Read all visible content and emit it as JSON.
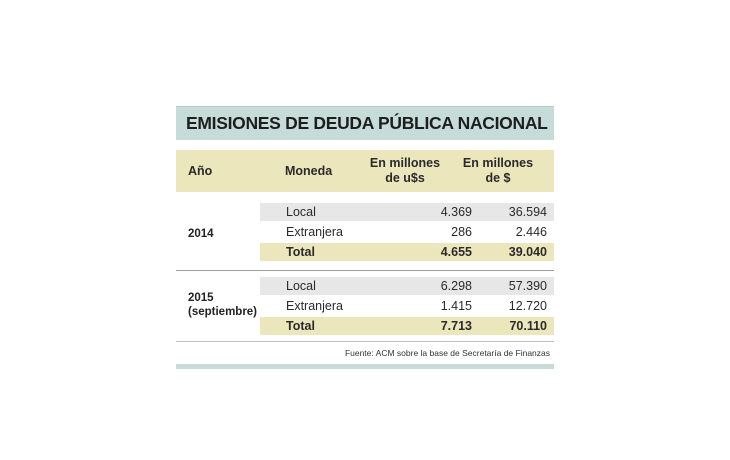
{
  "title": "EMISIONES DE DEUDA PÚBLICA NACIONAL",
  "headers": {
    "year": "Año",
    "currency": "Moneda",
    "usd_line1": "En millones",
    "usd_line2": "de u$s",
    "ars_line1": "En millones",
    "ars_line2": "de $"
  },
  "groups": [
    {
      "year_line1": "2014",
      "year_line2": "",
      "rows": [
        {
          "currency": "Local",
          "usd": "4.369",
          "ars": "36.594"
        },
        {
          "currency": "Extranjera",
          "usd": "286",
          "ars": "2.446"
        },
        {
          "currency": "Total",
          "usd": "4.655",
          "ars": "39.040"
        }
      ]
    },
    {
      "year_line1": "2015",
      "year_line2": "(septiembre)",
      "rows": [
        {
          "currency": "Local",
          "usd": "6.298",
          "ars": "57.390"
        },
        {
          "currency": "Extranjera",
          "usd": "1.415",
          "ars": "12.720"
        },
        {
          "currency": "Total",
          "usd": "7.713",
          "ars": "70.110"
        }
      ]
    }
  ],
  "source": "Fuente: ACM sobre la base de Secretaría de Finanzas",
  "colors": {
    "title_band": "#c5dcd8",
    "header_band": "#ece6bd",
    "row_gray": "#e7e7e7"
  }
}
